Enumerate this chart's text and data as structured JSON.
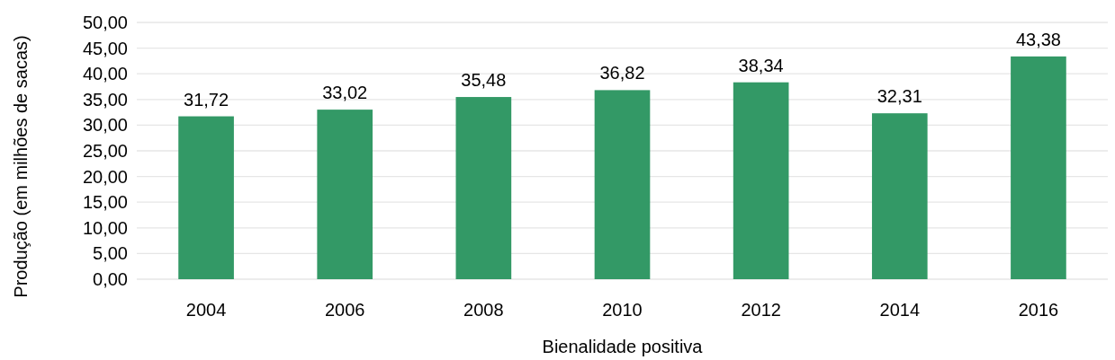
{
  "chart_data": {
    "type": "bar",
    "xlabel": "Bienalidade positiva",
    "ylabel": "Produção (em milhões de sacas)",
    "categories": [
      "2004",
      "2006",
      "2008",
      "2010",
      "2012",
      "2014",
      "2016"
    ],
    "values": [
      31.72,
      33.02,
      35.48,
      36.82,
      38.34,
      32.31,
      43.38
    ],
    "value_labels": [
      "31,72",
      "33,02",
      "35,48",
      "36,82",
      "38,34",
      "32,31",
      "43,38"
    ],
    "color": "#339966",
    "ylim": [
      0,
      50
    ],
    "yticks": [
      {
        "value": 0,
        "label": "0,00"
      },
      {
        "value": 5,
        "label": "5,00"
      },
      {
        "value": 10,
        "label": "10,00"
      },
      {
        "value": 15,
        "label": "15,00"
      },
      {
        "value": 20,
        "label": "20,00"
      },
      {
        "value": 25,
        "label": "25,00"
      },
      {
        "value": 30,
        "label": "30,00"
      },
      {
        "value": 35,
        "label": "35,00"
      },
      {
        "value": 40,
        "label": "40,00"
      },
      {
        "value": 45,
        "label": "45,00"
      },
      {
        "value": 50,
        "label": "50,00"
      }
    ],
    "grid": "y"
  }
}
